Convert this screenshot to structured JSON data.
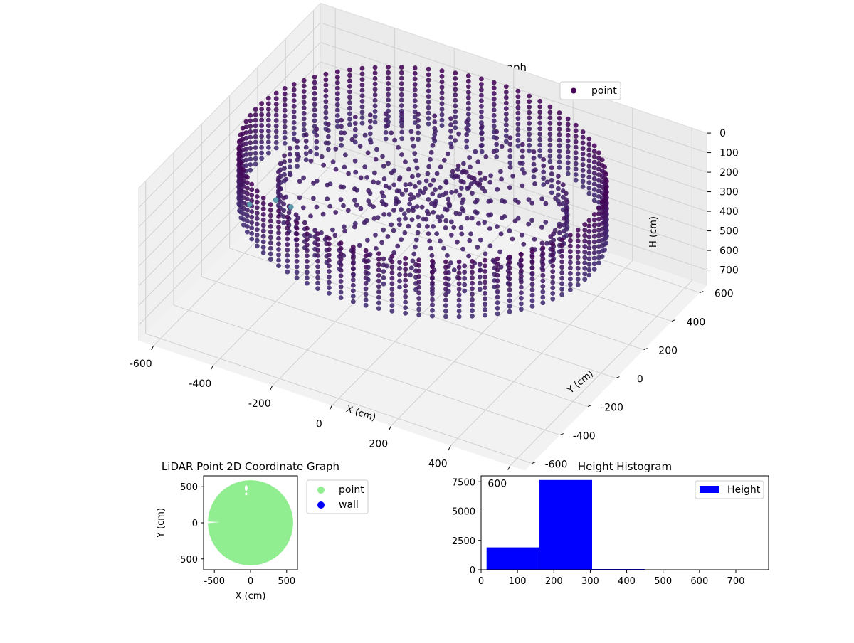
{
  "figure": {
    "colors": {
      "point_cmap_dark": "#440154",
      "point_cmap_mid": "#3b528b",
      "point_cmap_light": "#5f9ea0",
      "green": "#90ee90",
      "blue": "#0000ff"
    }
  },
  "chart_data": [
    {
      "type": "scatter",
      "title": "LiDAR Point 3D Coordinate Graph",
      "xlabel": "X (cm)",
      "ylabel": "Y (cm)",
      "zlabel": "H (cm)",
      "xlim": [
        -650,
        650
      ],
      "ylim": [
        -650,
        650
      ],
      "zlim": [
        0,
        780
      ],
      "z_inverted": true,
      "xticks": [
        -600,
        -400,
        -200,
        0,
        200,
        400,
        600
      ],
      "yticks": [
        -600,
        -400,
        -200,
        0,
        200,
        400,
        600
      ],
      "zticks": [
        0,
        100,
        200,
        300,
        400,
        500,
        600,
        700
      ],
      "legend": {
        "entries": [
          "point"
        ],
        "placement": "top-right"
      },
      "grid": true,
      "colormap": "viridis",
      "structure": {
        "outer_wall_radius_cm": 560,
        "inner_wall_radius_cm": 440,
        "wall_height_range_cm": [
          20,
          300
        ],
        "floor_height_cm": 210,
        "outlier_points": [
          [
            -620,
            80,
            600
          ],
          [
            -560,
            140,
            590
          ],
          [
            -500,
            120,
            580
          ]
        ]
      }
    },
    {
      "type": "scatter",
      "title": "LiDAR Point 2D Coordinate Graph",
      "xlabel": "X (cm)",
      "ylabel": "Y (cm)",
      "xlim": [
        -650,
        650
      ],
      "ylim": [
        -650,
        650
      ],
      "xticks": [
        -500,
        0,
        500
      ],
      "yticks": [
        -500,
        0,
        500
      ],
      "legend": {
        "entries": [
          {
            "label": "point",
            "color": "#90ee90"
          },
          {
            "label": "wall",
            "color": "#0000ff"
          }
        ],
        "placement": "outside-right"
      },
      "grid": false,
      "footprint_radius_cm": 590
    },
    {
      "type": "bar",
      "title": "Height Histogram",
      "xlabel": "",
      "ylabel": "",
      "bins": [
        {
          "x0": 15,
          "x1": 160,
          "count": 1900
        },
        {
          "x0": 160,
          "x1": 305,
          "count": 7650
        },
        {
          "x0": 305,
          "x1": 450,
          "count": 60
        },
        {
          "x0": 450,
          "x1": 595,
          "count": 15
        },
        {
          "x0": 595,
          "x1": 740,
          "count": 8
        }
      ],
      "xlim": [
        0,
        790
      ],
      "ylim": [
        0,
        8000
      ],
      "xticks": [
        0,
        100,
        200,
        300,
        400,
        500,
        600,
        700
      ],
      "yticks": [
        0,
        2500,
        5000,
        7500
      ],
      "legend": {
        "entries": [
          {
            "label": "Height",
            "color": "#0000ff"
          }
        ],
        "placement": "top-right"
      },
      "grid": false
    }
  ]
}
